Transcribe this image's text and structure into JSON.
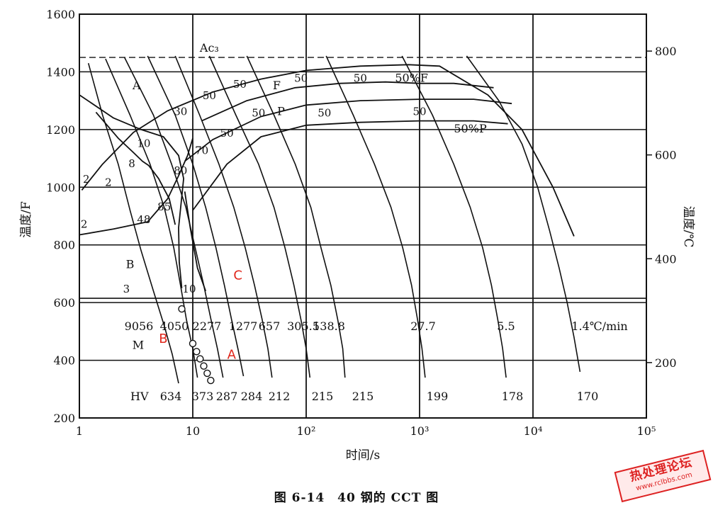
{
  "chart_data": {
    "type": "line",
    "title": "",
    "xlabel": "时间/s",
    "ylabel_left": "温度/F",
    "ylabel_right": "温度/℃",
    "x_scale": "log",
    "xlim": [
      1,
      100000
    ],
    "ylim_left": [
      200,
      1600
    ],
    "ylim_right_celsius": [
      93,
      871
    ],
    "x_ticks": [
      {
        "value": 1,
        "label": "1"
      },
      {
        "value": 10,
        "label": "10"
      },
      {
        "value": 100,
        "label": "10²"
      },
      {
        "value": 1000,
        "label": "10³"
      },
      {
        "value": 10000,
        "label": "10⁴"
      },
      {
        "value": 100000,
        "label": "10⁵"
      }
    ],
    "y_ticks_left": [
      {
        "value": 200,
        "label": "200"
      },
      {
        "value": 400,
        "label": "400"
      },
      {
        "value": 600,
        "label": "600"
      },
      {
        "value": 800,
        "label": "800"
      },
      {
        "value": 1000,
        "label": "1000"
      },
      {
        "value": 1200,
        "label": "1200"
      },
      {
        "value": 1400,
        "label": "1400"
      },
      {
        "value": 1600,
        "label": "1600"
      }
    ],
    "y_ticks_right": [
      {
        "value": 200,
        "label": "200"
      },
      {
        "value": 400,
        "label": "400"
      },
      {
        "value": 600,
        "label": "600"
      },
      {
        "value": 800,
        "label": "800"
      }
    ],
    "grid": true,
    "reference_lines": [
      {
        "label": "Ac₃",
        "y": 1450,
        "style": "dashed"
      },
      {
        "label": "",
        "y": 615,
        "style": "solid"
      }
    ],
    "phase_boundaries": [
      {
        "name": "F",
        "points": [
          [
            1.05,
            990
          ],
          [
            1.6,
            1080
          ],
          [
            3,
            1190
          ],
          [
            6,
            1265
          ],
          [
            15,
            1330
          ],
          [
            40,
            1375
          ],
          [
            100,
            1405
          ],
          [
            300,
            1420
          ],
          [
            800,
            1425
          ],
          [
            1500,
            1420
          ],
          [
            4000,
            1320
          ],
          [
            8000,
            1200
          ],
          [
            15000,
            1000
          ],
          [
            23000,
            830
          ]
        ]
      },
      {
        "name": "50%F",
        "points": [
          [
            12,
            1230
          ],
          [
            30,
            1300
          ],
          [
            80,
            1345
          ],
          [
            200,
            1360
          ],
          [
            500,
            1365
          ],
          [
            1000,
            1360
          ],
          [
            2000,
            1360
          ],
          [
            4500,
            1345
          ]
        ]
      },
      {
        "name": "P",
        "points": [
          [
            8.5,
            1090
          ],
          [
            15,
            1165
          ],
          [
            40,
            1245
          ],
          [
            100,
            1285
          ],
          [
            300,
            1300
          ],
          [
            1000,
            1305
          ],
          [
            3000,
            1305
          ],
          [
            6500,
            1290
          ]
        ]
      },
      {
        "name": "50%P",
        "points": [
          [
            10,
            920
          ],
          [
            20,
            1080
          ],
          [
            40,
            1175
          ],
          [
            100,
            1215
          ],
          [
            300,
            1225
          ],
          [
            1000,
            1230
          ],
          [
            3000,
            1230
          ],
          [
            6000,
            1220
          ]
        ]
      },
      {
        "name": "B",
        "points": [
          [
            1,
            835
          ],
          [
            2,
            855
          ],
          [
            4,
            880
          ],
          [
            6,
            960
          ],
          [
            7.5,
            1040
          ],
          [
            9,
            1110
          ],
          [
            10,
            1170
          ]
        ]
      },
      {
        "name": "",
        "points": [
          [
            1.4,
            1260
          ],
          [
            2.2,
            1170
          ],
          [
            3,
            1120
          ],
          [
            3.6,
            1090
          ],
          [
            4.1,
            1075
          ],
          [
            5,
            1030
          ],
          [
            6.2,
            960
          ],
          [
            7,
            870
          ]
        ]
      },
      {
        "name": "",
        "points": [
          [
            1,
            1320
          ],
          [
            2,
            1240
          ],
          [
            3.5,
            1200
          ],
          [
            5.5,
            1175
          ],
          [
            7.5,
            1110
          ],
          [
            8.3,
            1030
          ],
          [
            7.5,
            860
          ],
          [
            7.6,
            740
          ],
          [
            8,
            650
          ]
        ]
      },
      {
        "name": "",
        "points": [
          [
            8.5,
            985
          ],
          [
            9.5,
            860
          ],
          [
            11,
            720
          ],
          [
            13,
            640
          ]
        ]
      }
    ],
    "cooling_curves": [
      {
        "rate_label": "9056",
        "hv": "634",
        "points": [
          [
            1.2,
            1430
          ],
          [
            1.6,
            1250
          ],
          [
            2.2,
            1080
          ],
          [
            2.8,
            920
          ],
          [
            3.5,
            780
          ],
          [
            4.5,
            640
          ],
          [
            5.6,
            520
          ],
          [
            6.6,
            420
          ],
          [
            7.5,
            320
          ]
        ]
      },
      {
        "rate_label": "4050",
        "hv": "373",
        "points": [
          [
            1.7,
            1445
          ],
          [
            2.8,
            1250
          ],
          [
            4.2,
            1080
          ],
          [
            5.6,
            930
          ],
          [
            6.8,
            790
          ],
          [
            7.8,
            660
          ],
          [
            8.8,
            540
          ],
          [
            10,
            440
          ],
          [
            11,
            340
          ]
        ]
      },
      {
        "rate_label": "2277",
        "hv": "287",
        "points": [
          [
            2.5,
            1450
          ],
          [
            4.5,
            1250
          ],
          [
            6.5,
            1080
          ],
          [
            8.7,
            930
          ],
          [
            10.5,
            790
          ],
          [
            12.5,
            660
          ],
          [
            14.5,
            540
          ],
          [
            16.5,
            440
          ],
          [
            18.5,
            340
          ]
        ]
      },
      {
        "rate_label": "1277",
        "hv": "284",
        "points": [
          [
            4,
            1455
          ],
          [
            7,
            1250
          ],
          [
            10,
            1080
          ],
          [
            13,
            930
          ],
          [
            16,
            790
          ],
          [
            19,
            660
          ],
          [
            22,
            540
          ],
          [
            25,
            440
          ],
          [
            28,
            345
          ]
        ]
      },
      {
        "rate_label": "657",
        "hv": "212",
        "points": [
          [
            7,
            1455
          ],
          [
            11.5,
            1250
          ],
          [
            17,
            1080
          ],
          [
            23,
            930
          ],
          [
            29,
            790
          ],
          [
            35,
            660
          ],
          [
            41,
            540
          ],
          [
            46,
            440
          ],
          [
            50,
            340
          ]
        ]
      },
      {
        "rate_label": "305.5",
        "hv": "215",
        "points": [
          [
            14,
            1455
          ],
          [
            24,
            1250
          ],
          [
            38,
            1080
          ],
          [
            52,
            930
          ],
          [
            65,
            790
          ],
          [
            78,
            660
          ],
          [
            90,
            540
          ],
          [
            100,
            440
          ],
          [
            108,
            340
          ]
        ]
      },
      {
        "rate_label": "138.8",
        "hv": "215",
        "points": [
          [
            30,
            1455
          ],
          [
            52,
            1250
          ],
          [
            80,
            1080
          ],
          [
            110,
            930
          ],
          [
            135,
            790
          ],
          [
            165,
            660
          ],
          [
            190,
            540
          ],
          [
            210,
            440
          ],
          [
            220,
            340
          ]
        ]
      },
      {
        "rate_label": "27.7",
        "hv": "199",
        "points": [
          [
            150,
            1455
          ],
          [
            260,
            1250
          ],
          [
            400,
            1080
          ],
          [
            560,
            930
          ],
          [
            710,
            790
          ],
          [
            850,
            660
          ],
          [
            960,
            540
          ],
          [
            1050,
            440
          ],
          [
            1120,
            340
          ]
        ]
      },
      {
        "rate_label": "5.5",
        "hv": "178",
        "points": [
          [
            700,
            1455
          ],
          [
            1300,
            1250
          ],
          [
            2000,
            1080
          ],
          [
            2800,
            930
          ],
          [
            3600,
            790
          ],
          [
            4300,
            660
          ],
          [
            4900,
            540
          ],
          [
            5400,
            440
          ],
          [
            5800,
            340
          ]
        ]
      },
      {
        "rate_label": "1.4℃/min",
        "hv": "170",
        "points": [
          [
            2600,
            1455
          ],
          [
            5000,
            1300
          ],
          [
            8000,
            1150
          ],
          [
            11000,
            1000
          ],
          [
            14000,
            850
          ],
          [
            17000,
            720
          ],
          [
            20000,
            600
          ],
          [
            23000,
            480
          ],
          [
            26000,
            360
          ]
        ]
      }
    ],
    "phase_labels": [
      {
        "text": "A",
        "x": 3.2,
        "y": 1340
      },
      {
        "text": "F",
        "x": 55,
        "y": 1340
      },
      {
        "text": "P",
        "x": 60,
        "y": 1250
      },
      {
        "text": "B",
        "x": 2.8,
        "y": 720
      },
      {
        "text": "M",
        "x": 3.3,
        "y": 440
      },
      {
        "text": "50%F",
        "x": 850,
        "y": 1365
      },
      {
        "text": "50%P",
        "x": 2800,
        "y": 1190
      },
      {
        "text": "Ac₃",
        "x": 14,
        "y": 1470
      }
    ],
    "transformation_percent_labels": [
      {
        "text": "50",
        "x": 26,
        "y": 1345
      },
      {
        "text": "50",
        "x": 90,
        "y": 1365
      },
      {
        "text": "50",
        "x": 300,
        "y": 1365
      },
      {
        "text": "30",
        "x": 7.8,
        "y": 1250
      },
      {
        "text": "50",
        "x": 14,
        "y": 1305
      },
      {
        "text": "50",
        "x": 20,
        "y": 1175
      },
      {
        "text": "50",
        "x": 38,
        "y": 1245
      },
      {
        "text": "50",
        "x": 145,
        "y": 1245
      },
      {
        "text": "50",
        "x": 1000,
        "y": 1250
      },
      {
        "text": "10",
        "x": 3.7,
        "y": 1140
      },
      {
        "text": "70",
        "x": 12,
        "y": 1115
      },
      {
        "text": "8",
        "x": 2.9,
        "y": 1070
      },
      {
        "text": "80",
        "x": 7.8,
        "y": 1045
      },
      {
        "text": "2",
        "x": 1.8,
        "y": 1005
      },
      {
        "text": "2",
        "x": 1.15,
        "y": 1015
      },
      {
        "text": "85",
        "x": 5.6,
        "y": 920
      },
      {
        "text": "48",
        "x": 3.7,
        "y": 875
      },
      {
        "text": "2",
        "x": 1.1,
        "y": 860
      },
      {
        "text": "3",
        "x": 2.6,
        "y": 635
      },
      {
        "text": "10",
        "x": 9.3,
        "y": 635
      }
    ],
    "marker_points": [
      {
        "x": 8.0,
        "y": 578
      },
      {
        "x": 10.0,
        "y": 458
      },
      {
        "x": 10.8,
        "y": 430
      },
      {
        "x": 11.6,
        "y": 405
      },
      {
        "x": 12.5,
        "y": 380
      },
      {
        "x": 13.4,
        "y": 355
      },
      {
        "x": 14.4,
        "y": 330
      }
    ],
    "annotations_red": [
      {
        "text": "A",
        "x": 22,
        "y": 405
      },
      {
        "text": "B",
        "x": 5.5,
        "y": 460
      },
      {
        "text": "C",
        "x": 25,
        "y": 680
      }
    ],
    "hv_prefix": "HV",
    "caption": "图 6-14　40 钢的 CCT 图"
  },
  "watermark": {
    "line1": "热处理论坛",
    "line2": "www.rclbbs.com",
    "color": "#d22222"
  },
  "colors": {
    "line": "#111111",
    "annotation": "#e0261b"
  }
}
